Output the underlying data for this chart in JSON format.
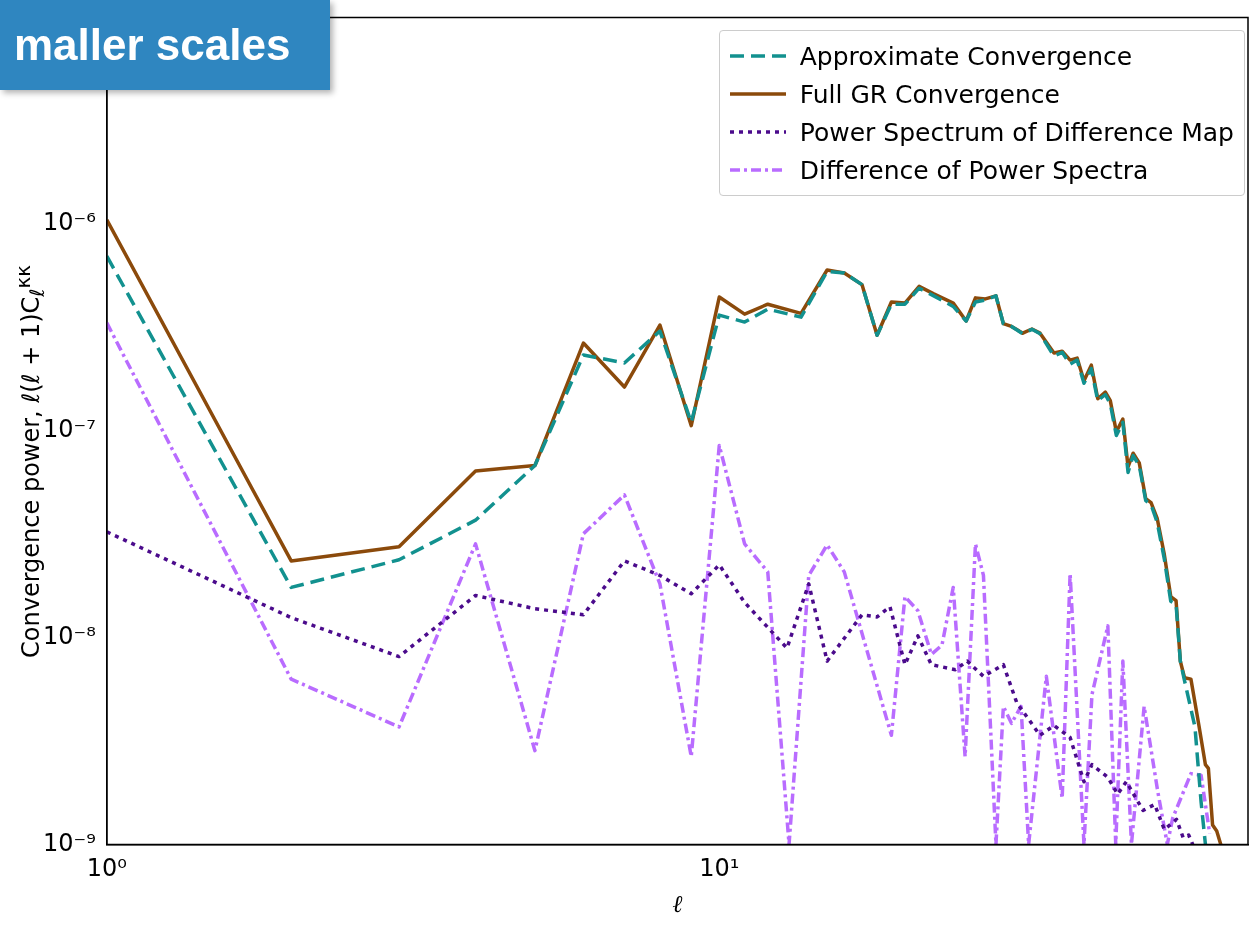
{
  "chart_data": {
    "type": "line",
    "xlabel": "ℓ",
    "ylabel": "Convergence power,  ℓ(ℓ + 1)C$_{ℓ}$$^{κκ}$",
    "log": "xy",
    "grid": false,
    "legend": "top right",
    "marker": "none",
    "xlim": [
      1,
      73
    ],
    "ylim": [
      1e-09,
      1e-05
    ],
    "xticks": [
      {
        "value": 1,
        "label": "10⁰"
      },
      {
        "value": 10,
        "label": "10¹"
      }
    ],
    "yticks": [
      {
        "value": 1e-09,
        "label": "10⁻⁹"
      },
      {
        "value": 1e-08,
        "label": "10⁻⁸"
      },
      {
        "value": 1e-07,
        "label": "10⁻⁷"
      },
      {
        "value": 1e-06,
        "label": "10⁻⁶"
      }
    ],
    "annotations": [
      "maller scales"
    ],
    "series": [
      {
        "name": "Approximate Convergence",
        "color": "#12918f",
        "line_style": "dashed",
        "x": [
          1,
          2,
          3,
          4,
          5,
          6,
          7,
          8,
          9,
          10,
          11,
          12,
          13.6,
          15,
          16,
          17.1,
          18.1,
          19.1,
          20.1,
          21.2,
          22.4,
          24.1,
          25.3,
          26.2,
          27.2,
          28.3,
          29.1,
          30,
          31.3,
          32.4,
          33.4,
          35.2,
          36.3,
          37.4,
          38.4,
          39.4,
          40.5,
          41.5,
          42.7,
          43.5,
          44.5,
          45.6,
          46.5,
          47.4,
          48.5,
          49.7,
          50.7,
          51.9,
          53.3,
          54.6,
          55.7,
          56.6,
          57.5,
          59.8,
          61.2,
          62.2
        ],
        "values": [
          7e-07,
          1.75e-08,
          2.38e-08,
          3.7e-08,
          6.8e-08,
          2.33e-07,
          2.13e-07,
          3.04e-07,
          1.1e-07,
          3.63e-07,
          3.36e-07,
          3.88e-07,
          3.55e-07,
          5.9e-07,
          5.8e-07,
          5.1e-07,
          2.9e-07,
          4.1e-07,
          4.1e-07,
          4.9e-07,
          4.5e-07,
          4e-07,
          3.4e-07,
          4.2e-07,
          4.3e-07,
          4.5e-07,
          3.3e-07,
          3.2e-07,
          2.95e-07,
          3.1e-07,
          2.95e-07,
          2.3e-07,
          2.4e-07,
          2.1e-07,
          2.2e-07,
          1.7e-07,
          2e-07,
          1.4e-07,
          1.5e-07,
          1.35e-07,
          9.5e-08,
          1.1e-07,
          6.3e-08,
          7.6e-08,
          6.8e-08,
          4.6e-08,
          4.4e-08,
          3.6e-08,
          2.4e-08,
          1.5e-08,
          1.45e-08,
          7.7e-09,
          6.2e-09,
          3.7e-09,
          1.6e-09,
          1e-09
        ]
      },
      {
        "name": "Full GR Convergence",
        "color": "#8b4a0b",
        "line_style": "solid",
        "x": [
          1,
          2,
          3,
          4,
          5,
          6,
          7,
          8,
          9,
          10,
          11,
          12,
          13.6,
          15,
          16,
          17.1,
          18.1,
          19.1,
          20.1,
          21.2,
          22.4,
          24.1,
          25.3,
          26.2,
          27.2,
          28.3,
          29.1,
          30,
          31.3,
          32.4,
          33.4,
          35.2,
          36.3,
          37.4,
          38.4,
          39.4,
          40.5,
          41.5,
          42.7,
          43.5,
          44.5,
          45.6,
          46.5,
          47.4,
          48.5,
          49.7,
          50.7,
          51.9,
          53.3,
          54.6,
          55.7,
          56.6,
          57.5,
          58.9,
          60.7,
          62.2,
          62.9,
          63.9,
          64.9,
          65.9
        ],
        "values": [
          1.05e-06,
          2.35e-08,
          2.75e-08,
          6.4e-08,
          6.8e-08,
          2.66e-07,
          1.63e-07,
          3.25e-07,
          1.06e-07,
          4.44e-07,
          3.67e-07,
          4.1e-07,
          3.7e-07,
          6e-07,
          5.8e-07,
          5.1e-07,
          2.9e-07,
          4.2e-07,
          4.15e-07,
          5e-07,
          4.6e-07,
          4.15e-07,
          3.4e-07,
          4.4e-07,
          4.35e-07,
          4.5e-07,
          3.3e-07,
          3.2e-07,
          2.97e-07,
          3.11e-07,
          2.97e-07,
          2.38e-07,
          2.43e-07,
          2.2e-07,
          2.25e-07,
          1.75e-07,
          2.08e-07,
          1.43e-07,
          1.54e-07,
          1.4e-07,
          9.9e-08,
          1.14e-07,
          6.7e-08,
          7.8e-08,
          7e-08,
          4.7e-08,
          4.5e-08,
          3.76e-08,
          2.52e-08,
          1.58e-08,
          1.51e-08,
          7.7e-09,
          6.4e-09,
          6.3e-09,
          3.76e-09,
          2.43e-09,
          2.33e-09,
          1.24e-09,
          1.16e-09,
          1e-09
        ]
      },
      {
        "name": "Power Spectrum of Difference Map",
        "color": "#4b0b8c",
        "line_style": "dotted",
        "x": [
          1,
          2,
          3,
          4,
          5,
          6,
          7,
          8,
          9,
          10,
          11,
          12.9,
          14,
          15,
          17.1,
          18.1,
          19,
          20.1,
          21.1,
          22.2,
          24.3,
          25.4,
          27,
          29.1,
          30.6,
          33.4,
          35.2,
          37.4,
          39.4,
          40.6,
          43.1,
          44.7,
          46.2,
          49.2,
          51.4,
          53.3,
          55.8,
          57.2,
          58.4,
          59.3
        ],
        "values": [
          3.25e-08,
          1.25e-08,
          8.1e-09,
          1.6e-08,
          1.38e-08,
          1.29e-08,
          2.35e-08,
          2e-08,
          1.63e-08,
          2.25e-08,
          1.48e-08,
          8.9e-09,
          1.82e-08,
          7.7e-09,
          1.29e-08,
          1.26e-08,
          1.41e-08,
          7.4e-09,
          1.02e-08,
          7.4e-09,
          7e-09,
          7.7e-09,
          6.5e-09,
          7.4e-09,
          4.85e-09,
          3.37e-09,
          3.76e-09,
          3.29e-09,
          2.01e-09,
          2.43e-09,
          2.11e-09,
          1.75e-09,
          2.01e-09,
          1.46e-09,
          1.56e-09,
          1.18e-09,
          1.32e-09,
          1.08e-09,
          1.11e-09,
          1e-09
        ]
      },
      {
        "name": "Difference of Power Spectra",
        "color": "#b96cff",
        "line_style": "dashdot",
        "x": [
          1,
          2,
          3,
          4,
          5,
          6,
          7,
          8,
          9,
          10,
          11,
          12,
          13,
          14,
          15,
          16,
          19.1,
          20.1,
          21.1,
          22.2,
          23.1,
          24.1,
          25.2,
          26.2,
          27,
          28.3,
          29.1,
          30,
          31.1,
          32,
          34.2,
          36.3,
          37.4,
          39.4,
          40.6,
          43.1,
          44.4,
          45.6,
          47.1,
          49.4,
          52,
          53.9,
          55,
          58.9,
          61.2,
          63.2
        ],
        "values": [
          3.33e-07,
          6.3e-09,
          3.7e-09,
          2.84e-08,
          2.84e-09,
          3.18e-08,
          4.9e-08,
          1.82e-08,
          2.66e-09,
          8.5e-08,
          2.84e-08,
          2.08e-08,
          1e-09,
          2e-08,
          2.81e-08,
          2.08e-08,
          3.37e-09,
          1.58e-08,
          1.35e-08,
          8.3e-09,
          9.2e-09,
          1.75e-08,
          2.66e-09,
          2.84e-08,
          2e-08,
          1e-09,
          4.65e-09,
          3.85e-09,
          4.65e-09,
          1e-09,
          6.5e-09,
          1.67e-09,
          2.04e-08,
          1e-09,
          5.3e-09,
          1.14e-08,
          1e-09,
          7.7e-09,
          1e-09,
          4.65e-09,
          1.8e-09,
          1e-09,
          1.34e-09,
          2.2e-09,
          2.16e-09,
          1.13e-09
        ]
      }
    ]
  }
}
